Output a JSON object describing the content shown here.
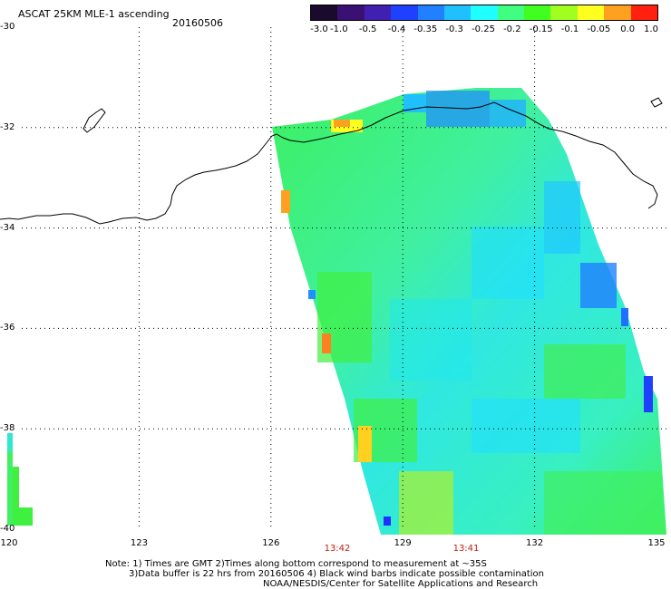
{
  "header": {
    "title": "ASCAT 25KM MLE-1 ascending",
    "date": "20160506"
  },
  "colorbar": {
    "labels": [
      "-3.0",
      "-1.0",
      "-0.5",
      "-0.4",
      "-0.35",
      "-0.3",
      "-0.25",
      "-0.2",
      "-0.15",
      "-0.1",
      "-0.05",
      "0.0",
      "1.0"
    ],
    "colors": [
      "#1a0a2e",
      "#3a1072",
      "#4020b0",
      "#2040ff",
      "#2080ff",
      "#20c0ff",
      "#20ffff",
      "#40ff80",
      "#40ff20",
      "#a0ff20",
      "#ffff20",
      "#ffa020",
      "#ff2010"
    ]
  },
  "axes": {
    "lat_labels": [
      "-30",
      "-32",
      "-34",
      "-36",
      "-38",
      "-40"
    ],
    "lon_labels": [
      "120",
      "123",
      "126",
      "129",
      "132",
      "135"
    ]
  },
  "time_labels": [
    "13:42",
    "13:41"
  ],
  "notes": {
    "line1": "Note: 1) Times are GMT 2)Times along bottom correspond to measurement at ~35S",
    "line2": "3)Data buffer is 22 hrs from 20160506 4) Black wind barbs indicate possible contamination",
    "line3": "NOAA/NESDIS/Center for Satellite Applications and Research"
  },
  "map_data": {
    "lon_range": [
      120,
      135
    ],
    "lat_range": [
      -40,
      -30
    ],
    "gridlines": "dotted"
  }
}
